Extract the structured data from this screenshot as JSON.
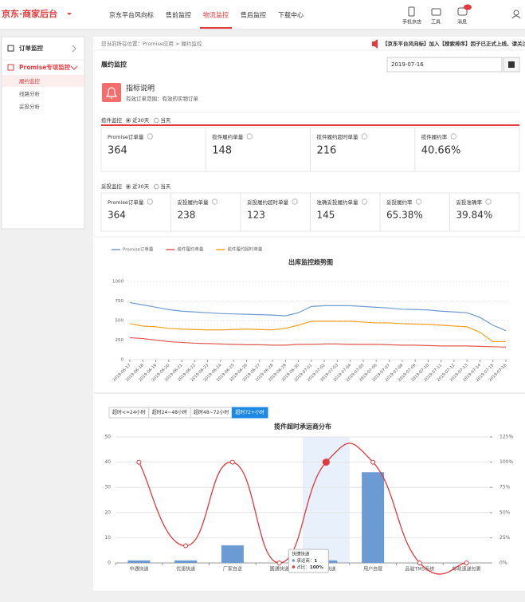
{
  "header": {
    "logo": "京东·商家后台",
    "nav": [
      "京东平台风向标",
      "售前监控",
      "物流监控",
      "售后监控",
      "下载中心"
    ],
    "tools": [
      "手机京店",
      "工具",
      "消息"
    ]
  },
  "sidebar": {
    "groups": [
      {
        "title": "订单监控",
        "items": []
      },
      {
        "title": "Promise专项监控",
        "items": [
          "履约监控",
          "线路分析",
          "妥投分析"
        ]
      }
    ]
  },
  "breadcrumb": {
    "prefix": "您当前所在位置：",
    "path": [
      "Promise应用",
      "履约监控"
    ]
  },
  "notice": "【京东平台风向标】加入【搜索排序】因子已正式上线，请关注",
  "page_title": "履约监控",
  "date": "2019-07-16",
  "info": {
    "title": "指标说明",
    "text": "有效订单范围：有效的实物订单"
  },
  "sections": [
    {
      "title": "揽件监控",
      "options": [
        "近30天",
        "当天"
      ],
      "metrics": [
        {
          "label": "Promise订单量",
          "value": "364"
        },
        {
          "label": "揽件履约单量",
          "value": "148"
        },
        {
          "label": "揽件履约超时单量",
          "value": "216"
        },
        {
          "label": "揽件履约率",
          "value": "40.66%"
        }
      ]
    },
    {
      "title": "妥投监控",
      "options": [
        "近30天",
        "当天"
      ],
      "metrics": [
        {
          "label": "Promise订单量",
          "value": "364"
        },
        {
          "label": "妥投履约单量",
          "value": "238"
        },
        {
          "label": "妥投履约超时单量",
          "value": "123"
        },
        {
          "label": "准确妥投履约单量",
          "value": "145"
        },
        {
          "label": "妥投履约率",
          "value": "65.38%"
        },
        {
          "label": "妥投准确率",
          "value": "39.84%"
        }
      ]
    }
  ],
  "chart_data": [
    {
      "type": "line",
      "title": "出库监控趋势图",
      "x": [
        "2019-06-17",
        "2019-06-18",
        "2019-06-19",
        "2019-06-20",
        "2019-06-21",
        "2019-06-22",
        "2019-06-23",
        "2019-06-24",
        "2019-06-25",
        "2019-06-26",
        "2019-06-27",
        "2019-06-28",
        "2019-06-29",
        "2019-06-30",
        "2019-07-01",
        "2019-07-02",
        "2019-07-03",
        "2019-07-04",
        "2019-07-05",
        "2019-07-06",
        "2019-07-07",
        "2019-07-08",
        "2019-07-09",
        "2019-07-10",
        "2019-07-11",
        "2019-07-12",
        "2019-07-13",
        "2019-07-14",
        "2019-07-15",
        "2019-07-16"
      ],
      "series": [
        {
          "name": "Promise订单量",
          "color": "#6f9bd1",
          "values": [
            730,
            700,
            670,
            640,
            620,
            610,
            600,
            590,
            585,
            580,
            575,
            570,
            560,
            600,
            680,
            690,
            690,
            690,
            680,
            670,
            660,
            645,
            640,
            635,
            620,
            610,
            600,
            540,
            440,
            370
          ]
        },
        {
          "name": "揽件履约单量",
          "color": "#e05a4f",
          "values": [
            280,
            270,
            250,
            230,
            220,
            210,
            205,
            200,
            195,
            190,
            190,
            185,
            185,
            195,
            195,
            200,
            200,
            195,
            195,
            195,
            190,
            185,
            185,
            180,
            175,
            175,
            175,
            170,
            165,
            160
          ]
        },
        {
          "name": "揽件履约超时单量",
          "color": "#f0a020",
          "values": [
            460,
            430,
            420,
            400,
            390,
            385,
            380,
            380,
            385,
            390,
            385,
            380,
            400,
            440,
            490,
            490,
            490,
            490,
            480,
            470,
            470,
            460,
            455,
            450,
            440,
            430,
            420,
            350,
            230,
            230
          ]
        }
      ],
      "ylim": [
        0,
        1000
      ],
      "yticks": [
        0,
        250,
        500,
        750,
        1000
      ],
      "grid": true
    },
    {
      "type": "bar+line",
      "title": "揽件超时承运商分布",
      "filters": [
        "超时<=24小时",
        "超时24~48小时",
        "超时48~72小时",
        "超时72+小时"
      ],
      "categories": [
        "中通快递",
        "优速快递",
        "厂家自送",
        "圆通快递",
        "快捷快递",
        "用户自提",
        "品骏TMS系统",
        "邮政速递包裹"
      ],
      "series": [
        {
          "name": "承运商",
          "color": "#6b9bd2",
          "values": [
            1,
            1,
            7,
            0,
            1,
            36,
            0,
            0
          ]
        },
        {
          "name": "占比",
          "color": "#e0393e",
          "axis": "y2",
          "values": [
            100,
            17,
            100,
            0,
            100,
            100,
            0,
            0
          ],
          "value_labels": [
            null,
            null,
            null,
            null,
            "100%",
            null,
            null,
            null
          ]
        }
      ],
      "ylim": [
        0,
        50
      ],
      "yticks": [
        0,
        10,
        20,
        30,
        40,
        50
      ],
      "y2lim": [
        0,
        125
      ],
      "y2ticks": [
        {
          "value": 0,
          "label": "0%"
        },
        {
          "value": 25,
          "label": "25%"
        },
        {
          "value": 50,
          "label": "50%"
        },
        {
          "value": 75,
          "label": "75%"
        },
        {
          "value": 100,
          "label": "100%"
        },
        {
          "value": 125,
          "label": "125%"
        }
      ],
      "grid": true
    }
  ]
}
